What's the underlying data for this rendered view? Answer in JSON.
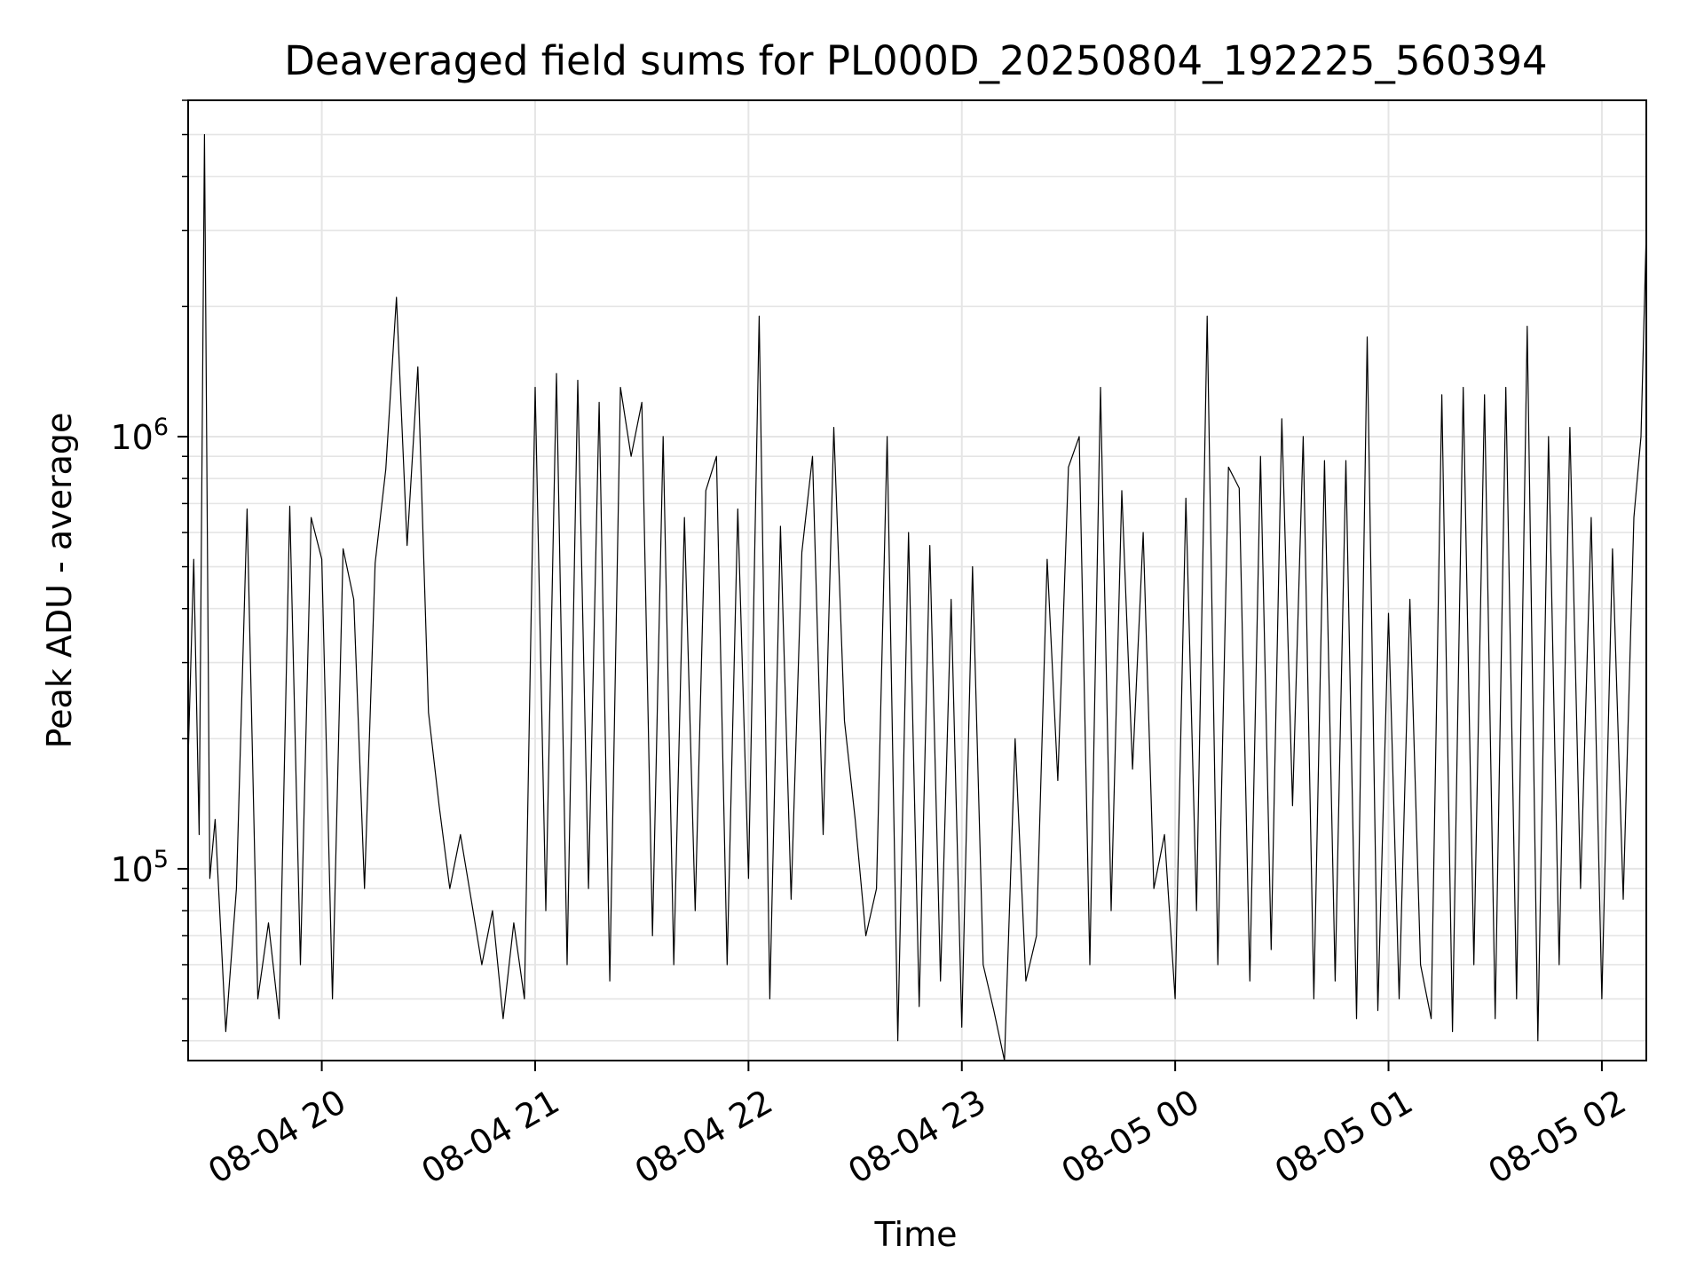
{
  "chart_data": {
    "type": "line",
    "title": "Deaveraged field sums for PL000D_20250804_192225_560394",
    "xlabel": "Time",
    "ylabel": "Peak ADU - average",
    "y_scale": "log",
    "ylim": [
      36000,
      6000000
    ],
    "xlim": [
      "2025-08-04 19:22:25",
      "2025-08-05 02:12:30"
    ],
    "grid": "on (major and minor)",
    "line_color": "#000000",
    "grid_color": "#e5e5e5",
    "x_ticks": [
      {
        "t": "2025-08-04 20:00",
        "label": "08-04 20"
      },
      {
        "t": "2025-08-04 21:00",
        "label": "08-04 21"
      },
      {
        "t": "2025-08-04 22:00",
        "label": "08-04 22"
      },
      {
        "t": "2025-08-04 23:00",
        "label": "08-04 23"
      },
      {
        "t": "2025-08-05 00:00",
        "label": "08-05 00"
      },
      {
        "t": "2025-08-05 01:00",
        "label": "08-05 01"
      },
      {
        "t": "2025-08-05 02:00",
        "label": "08-05 02"
      }
    ],
    "y_ticks": [
      {
        "value": 100000,
        "base": "10",
        "exp": "5"
      },
      {
        "value": 1000000,
        "base": "10",
        "exp": "6"
      }
    ],
    "series": [
      {
        "x": [
          "2025-08-04 19:22:25",
          "2025-08-04 19:24:00",
          "2025-08-04 19:25:30",
          "2025-08-04 19:27:00",
          "2025-08-04 19:28:30",
          "2025-08-04 19:30:00",
          "2025-08-04 19:33:00",
          "2025-08-04 19:36:00",
          "2025-08-04 19:39:00",
          "2025-08-04 19:42:00",
          "2025-08-04 19:45:00",
          "2025-08-04 19:48:00",
          "2025-08-04 19:51:00",
          "2025-08-04 19:54:00",
          "2025-08-04 19:57:00",
          "2025-08-04 20:00:00",
          "2025-08-04 20:03:00",
          "2025-08-04 20:06:00",
          "2025-08-04 20:09:00",
          "2025-08-04 20:12:00",
          "2025-08-04 20:15:00",
          "2025-08-04 20:18:00",
          "2025-08-04 20:21:00",
          "2025-08-04 20:24:00",
          "2025-08-04 20:27:00",
          "2025-08-04 20:30:00",
          "2025-08-04 20:33:00",
          "2025-08-04 20:36:00",
          "2025-08-04 20:39:00",
          "2025-08-04 20:42:00",
          "2025-08-04 20:45:00",
          "2025-08-04 20:48:00",
          "2025-08-04 20:51:00",
          "2025-08-04 20:54:00",
          "2025-08-04 20:57:00",
          "2025-08-04 21:00:00",
          "2025-08-04 21:03:00",
          "2025-08-04 21:06:00",
          "2025-08-04 21:09:00",
          "2025-08-04 21:12:00",
          "2025-08-04 21:15:00",
          "2025-08-04 21:18:00",
          "2025-08-04 21:21:00",
          "2025-08-04 21:24:00",
          "2025-08-04 21:27:00",
          "2025-08-04 21:30:00",
          "2025-08-04 21:33:00",
          "2025-08-04 21:36:00",
          "2025-08-04 21:39:00",
          "2025-08-04 21:42:00",
          "2025-08-04 21:45:00",
          "2025-08-04 21:48:00",
          "2025-08-04 21:51:00",
          "2025-08-04 21:54:00",
          "2025-08-04 21:57:00",
          "2025-08-04 22:00:00",
          "2025-08-04 22:03:00",
          "2025-08-04 22:06:00",
          "2025-08-04 22:09:00",
          "2025-08-04 22:12:00",
          "2025-08-04 22:15:00",
          "2025-08-04 22:18:00",
          "2025-08-04 22:21:00",
          "2025-08-04 22:24:00",
          "2025-08-04 22:27:00",
          "2025-08-04 22:30:00",
          "2025-08-04 22:33:00",
          "2025-08-04 22:36:00",
          "2025-08-04 22:39:00",
          "2025-08-04 22:42:00",
          "2025-08-04 22:45:00",
          "2025-08-04 22:48:00",
          "2025-08-04 22:51:00",
          "2025-08-04 22:54:00",
          "2025-08-04 22:57:00",
          "2025-08-04 23:00:00",
          "2025-08-04 23:03:00",
          "2025-08-04 23:06:00",
          "2025-08-04 23:09:00",
          "2025-08-04 23:12:00",
          "2025-08-04 23:15:00",
          "2025-08-04 23:18:00",
          "2025-08-04 23:21:00",
          "2025-08-04 23:24:00",
          "2025-08-04 23:27:00",
          "2025-08-04 23:30:00",
          "2025-08-04 23:33:00",
          "2025-08-04 23:36:00",
          "2025-08-04 23:39:00",
          "2025-08-04 23:42:00",
          "2025-08-04 23:45:00",
          "2025-08-04 23:48:00",
          "2025-08-04 23:51:00",
          "2025-08-04 23:54:00",
          "2025-08-04 23:57:00",
          "2025-08-05 00:00:00",
          "2025-08-05 00:03:00",
          "2025-08-05 00:06:00",
          "2025-08-05 00:09:00",
          "2025-08-05 00:12:00",
          "2025-08-05 00:15:00",
          "2025-08-05 00:18:00",
          "2025-08-05 00:21:00",
          "2025-08-05 00:24:00",
          "2025-08-05 00:27:00",
          "2025-08-05 00:30:00",
          "2025-08-05 00:33:00",
          "2025-08-05 00:36:00",
          "2025-08-05 00:39:00",
          "2025-08-05 00:42:00",
          "2025-08-05 00:45:00",
          "2025-08-05 00:48:00",
          "2025-08-05 00:51:00",
          "2025-08-05 00:54:00",
          "2025-08-05 00:57:00",
          "2025-08-05 01:00:00",
          "2025-08-05 01:03:00",
          "2025-08-05 01:06:00",
          "2025-08-05 01:09:00",
          "2025-08-05 01:12:00",
          "2025-08-05 01:15:00",
          "2025-08-05 01:18:00",
          "2025-08-05 01:21:00",
          "2025-08-05 01:24:00",
          "2025-08-05 01:27:00",
          "2025-08-05 01:30:00",
          "2025-08-05 01:33:00",
          "2025-08-05 01:36:00",
          "2025-08-05 01:39:00",
          "2025-08-05 01:42:00",
          "2025-08-05 01:45:00",
          "2025-08-05 01:48:00",
          "2025-08-05 01:51:00",
          "2025-08-05 01:54:00",
          "2025-08-05 01:57:00",
          "2025-08-05 02:00:00",
          "2025-08-05 02:03:00",
          "2025-08-05 02:06:00",
          "2025-08-05 02:09:00",
          "2025-08-05 02:11:00",
          "2025-08-05 02:12:30"
        ],
        "y": [
          180000,
          520000,
          120000,
          5000000,
          95000,
          130000,
          42000,
          90000,
          680000,
          50000,
          75000,
          45000,
          690000,
          60000,
          650000,
          520000,
          50000,
          550000,
          420000,
          90000,
          510000,
          840000,
          2100000,
          560000,
          1450000,
          230000,
          140000,
          90000,
          120000,
          85000,
          60000,
          80000,
          45000,
          75000,
          50000,
          1300000,
          80000,
          1400000,
          60000,
          1350000,
          90000,
          1200000,
          55000,
          1300000,
          900000,
          1200000,
          70000,
          1000000,
          60000,
          650000,
          80000,
          750000,
          900000,
          60000,
          680000,
          95000,
          1900000,
          50000,
          620000,
          85000,
          540000,
          900000,
          120000,
          1050000,
          220000,
          130000,
          70000,
          90000,
          1000000,
          40000,
          600000,
          48000,
          560000,
          55000,
          420000,
          43000,
          500000,
          60000,
          47000,
          36000,
          200000,
          55000,
          70000,
          520000,
          160000,
          850000,
          1000000,
          60000,
          1300000,
          80000,
          750000,
          170000,
          600000,
          90000,
          120000,
          50000,
          720000,
          80000,
          1900000,
          60000,
          850000,
          760000,
          55000,
          900000,
          65000,
          1100000,
          140000,
          1000000,
          50000,
          880000,
          55000,
          880000,
          45000,
          1700000,
          47000,
          390000,
          50000,
          420000,
          60000,
          45000,
          1250000,
          42000,
          1300000,
          60000,
          1250000,
          45000,
          1300000,
          50000,
          1800000,
          40000,
          1000000,
          60000,
          1050000,
          90000,
          650000,
          50000,
          550000,
          85000,
          650000,
          1000000,
          3000000
        ]
      }
    ]
  }
}
